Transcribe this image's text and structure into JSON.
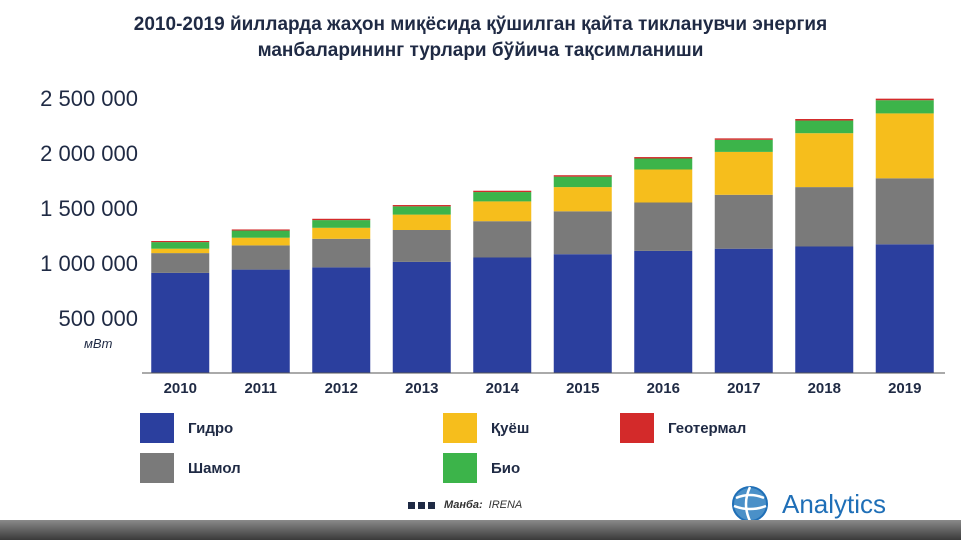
{
  "colors": {
    "hydro": "#2b3f9e",
    "wind": "#7a7a7a",
    "solar": "#f6be1c",
    "geothermal": "#d32a2a",
    "bio": "#3cb44a",
    "title": "#1f2a44",
    "logo": "#1f6fb7"
  },
  "chart_data": {
    "type": "bar",
    "stacked": true,
    "title": "2010-2019 йилларда жаҳон миқёсида қўшилган қайта тикланувчи энергия манбаларининг турлари бўйича тақсимланиши",
    "title_lines": [
      "2010-2019 йилларда жаҳон миқёсида қўшилган қайта тикланувчи энергия",
      "манбаларининг турлари бўйича тақсимланиши"
    ],
    "xlabel": "",
    "ylabel": "мВт",
    "ylim": [
      0,
      2500000
    ],
    "yticks": [
      500000,
      1000000,
      1500000,
      2000000,
      2500000
    ],
    "ytick_labels": [
      "500 000",
      "1 000 000",
      "1 500 000",
      "2 000 000",
      "2 500 000"
    ],
    "categories": [
      "2010",
      "2011",
      "2012",
      "2013",
      "2014",
      "2015",
      "2016",
      "2017",
      "2018",
      "2019"
    ],
    "series": [
      {
        "name": "Гидро",
        "key": "hydro",
        "values": [
          910000,
          940000,
          960000,
          1010000,
          1050000,
          1080000,
          1110000,
          1130000,
          1150000,
          1170000
        ]
      },
      {
        "name": "Шамол",
        "key": "wind",
        "values": [
          180000,
          220000,
          260000,
          290000,
          330000,
          390000,
          440000,
          490000,
          540000,
          600000
        ]
      },
      {
        "name": "Қуёш",
        "key": "solar",
        "values": [
          40000,
          70000,
          100000,
          140000,
          180000,
          220000,
          300000,
          390000,
          490000,
          590000
        ]
      },
      {
        "name": "Био",
        "key": "bio",
        "values": [
          60000,
          65000,
          70000,
          75000,
          85000,
          95000,
          100000,
          110000,
          115000,
          120000
        ]
      },
      {
        "name": "Геотермал",
        "key": "geothermal",
        "values": [
          10000,
          10000,
          12000,
          12000,
          12000,
          13000,
          13000,
          13000,
          14000,
          14000
        ]
      }
    ],
    "grid": false,
    "legend_position": "bottom"
  },
  "legend": {
    "hydro": "Гидро",
    "wind": "Шамол",
    "solar": "Қуёш",
    "bio": "Био",
    "geothermal": "Геотермал"
  },
  "source": {
    "label": "Манба:",
    "value": "IRENA"
  },
  "logo": {
    "text": "Analytics",
    "icon": "globe-icon"
  }
}
